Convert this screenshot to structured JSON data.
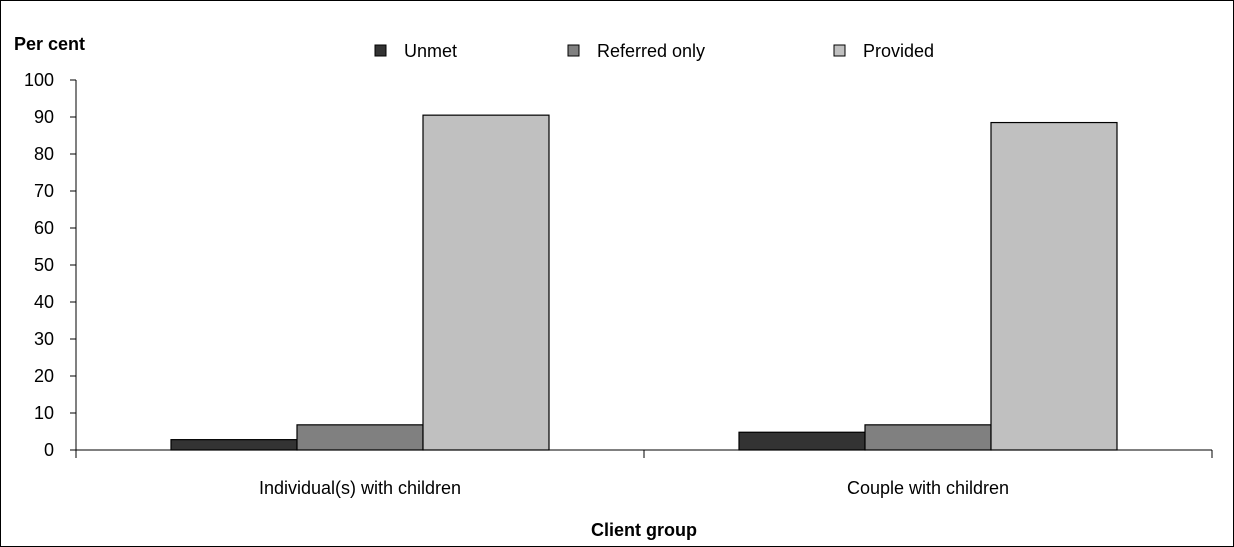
{
  "chart_data": {
    "type": "bar",
    "ylabel": "Per cent",
    "xlabel": "Client group",
    "categories": [
      "Individual(s) with children",
      "Couple with children"
    ],
    "series": [
      {
        "name": "Unmet",
        "values": [
          2.8,
          4.8
        ],
        "color": "#333333"
      },
      {
        "name": "Referred only",
        "values": [
          6.8,
          6.8
        ],
        "color": "#808080"
      },
      {
        "name": "Provided",
        "values": [
          90.5,
          88.5
        ],
        "color": "#c0c0c0"
      }
    ],
    "ylim": [
      0,
      100
    ],
    "yticks": [
      "0",
      "10",
      "20",
      "30",
      "40",
      "50",
      "60",
      "70",
      "80",
      "90",
      "100"
    ],
    "grid": false,
    "legend_position": "top"
  }
}
